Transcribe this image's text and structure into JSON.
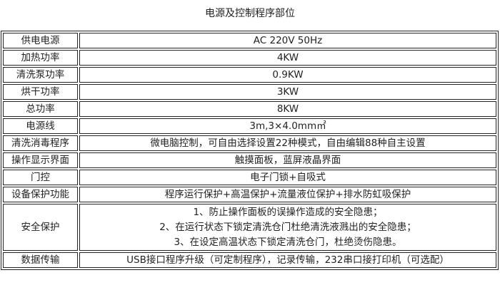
{
  "title": "电源及控制程序部位",
  "rows": [
    {
      "label": "供电电源",
      "value": "AC 220V 50Hz"
    },
    {
      "label": "加热功率",
      "value": "4KW"
    },
    {
      "label": "清洗泵功率",
      "value": "0.9KW"
    },
    {
      "label": "烘干功率",
      "value": "3KW"
    },
    {
      "label": "总功率",
      "value": "8KW"
    },
    {
      "label": "电源线",
      "value": "3m,3×4.0mm㎡"
    },
    {
      "label": "清洗消毒程序",
      "value": "微电脑控制，可自由选择设置22种模式，自由编辑88种自主设置"
    },
    {
      "label": "操作显示界面",
      "value": "触摸面板，蓝屏液晶界面"
    },
    {
      "label": "门控",
      "value": "电子门锁+自吸式"
    },
    {
      "label": "设备保护功能",
      "value": "程序运行保护+高温保护+流量液位保护+排水防虹吸保护"
    }
  ],
  "safety": {
    "label": "安全保护",
    "lines": [
      "1、防止操作面板的误操作造成的安全隐患；",
      "2、在运行状态下锁定清洗仓门杜绝清洗液溅出的安全隐患；",
      "3、在设定高温状态下锁定清洗仓门，杜绝烫伤隐患。"
    ]
  },
  "transfer": {
    "label": "数据传输",
    "value": "USB接口程序升级（可定制程序），记录传输，232串口接打印机（可选配）"
  }
}
